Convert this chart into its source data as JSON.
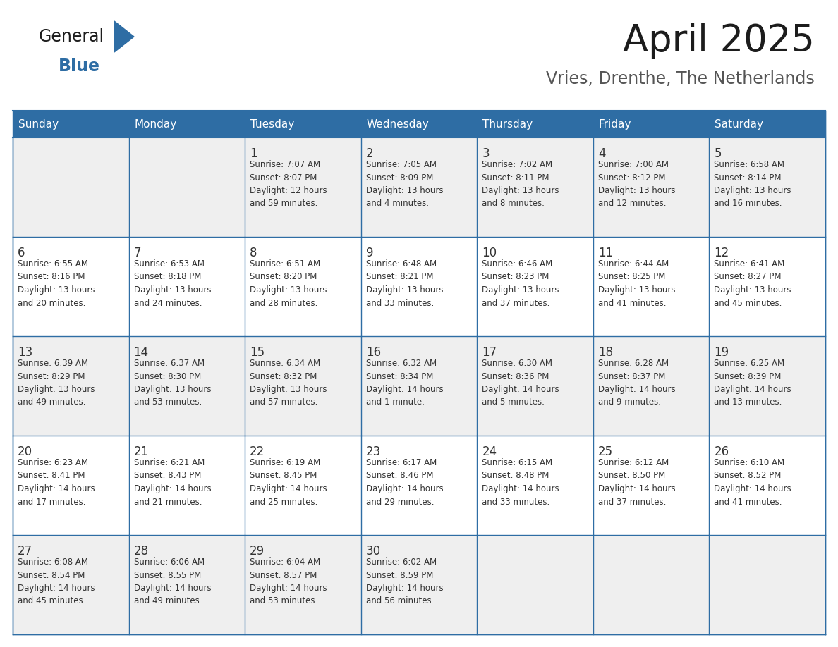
{
  "title": "April 2025",
  "subtitle": "Vries, Drenthe, The Netherlands",
  "header_bg": "#2E6DA4",
  "header_text": "#FFFFFF",
  "cell_bg_odd": "#EFEFEF",
  "cell_bg_even": "#FFFFFF",
  "cell_text": "#333333",
  "border_color": "#2E6DA4",
  "day_headers": [
    "Sunday",
    "Monday",
    "Tuesday",
    "Wednesday",
    "Thursday",
    "Friday",
    "Saturday"
  ],
  "weeks": [
    [
      {
        "day": "",
        "lines": []
      },
      {
        "day": "",
        "lines": []
      },
      {
        "day": "1",
        "lines": [
          "Sunrise: 7:07 AM",
          "Sunset: 8:07 PM",
          "Daylight: 12 hours",
          "and 59 minutes."
        ]
      },
      {
        "day": "2",
        "lines": [
          "Sunrise: 7:05 AM",
          "Sunset: 8:09 PM",
          "Daylight: 13 hours",
          "and 4 minutes."
        ]
      },
      {
        "day": "3",
        "lines": [
          "Sunrise: 7:02 AM",
          "Sunset: 8:11 PM",
          "Daylight: 13 hours",
          "and 8 minutes."
        ]
      },
      {
        "day": "4",
        "lines": [
          "Sunrise: 7:00 AM",
          "Sunset: 8:12 PM",
          "Daylight: 13 hours",
          "and 12 minutes."
        ]
      },
      {
        "day": "5",
        "lines": [
          "Sunrise: 6:58 AM",
          "Sunset: 8:14 PM",
          "Daylight: 13 hours",
          "and 16 minutes."
        ]
      }
    ],
    [
      {
        "day": "6",
        "lines": [
          "Sunrise: 6:55 AM",
          "Sunset: 8:16 PM",
          "Daylight: 13 hours",
          "and 20 minutes."
        ]
      },
      {
        "day": "7",
        "lines": [
          "Sunrise: 6:53 AM",
          "Sunset: 8:18 PM",
          "Daylight: 13 hours",
          "and 24 minutes."
        ]
      },
      {
        "day": "8",
        "lines": [
          "Sunrise: 6:51 AM",
          "Sunset: 8:20 PM",
          "Daylight: 13 hours",
          "and 28 minutes."
        ]
      },
      {
        "day": "9",
        "lines": [
          "Sunrise: 6:48 AM",
          "Sunset: 8:21 PM",
          "Daylight: 13 hours",
          "and 33 minutes."
        ]
      },
      {
        "day": "10",
        "lines": [
          "Sunrise: 6:46 AM",
          "Sunset: 8:23 PM",
          "Daylight: 13 hours",
          "and 37 minutes."
        ]
      },
      {
        "day": "11",
        "lines": [
          "Sunrise: 6:44 AM",
          "Sunset: 8:25 PM",
          "Daylight: 13 hours",
          "and 41 minutes."
        ]
      },
      {
        "day": "12",
        "lines": [
          "Sunrise: 6:41 AM",
          "Sunset: 8:27 PM",
          "Daylight: 13 hours",
          "and 45 minutes."
        ]
      }
    ],
    [
      {
        "day": "13",
        "lines": [
          "Sunrise: 6:39 AM",
          "Sunset: 8:29 PM",
          "Daylight: 13 hours",
          "and 49 minutes."
        ]
      },
      {
        "day": "14",
        "lines": [
          "Sunrise: 6:37 AM",
          "Sunset: 8:30 PM",
          "Daylight: 13 hours",
          "and 53 minutes."
        ]
      },
      {
        "day": "15",
        "lines": [
          "Sunrise: 6:34 AM",
          "Sunset: 8:32 PM",
          "Daylight: 13 hours",
          "and 57 minutes."
        ]
      },
      {
        "day": "16",
        "lines": [
          "Sunrise: 6:32 AM",
          "Sunset: 8:34 PM",
          "Daylight: 14 hours",
          "and 1 minute."
        ]
      },
      {
        "day": "17",
        "lines": [
          "Sunrise: 6:30 AM",
          "Sunset: 8:36 PM",
          "Daylight: 14 hours",
          "and 5 minutes."
        ]
      },
      {
        "day": "18",
        "lines": [
          "Sunrise: 6:28 AM",
          "Sunset: 8:37 PM",
          "Daylight: 14 hours",
          "and 9 minutes."
        ]
      },
      {
        "day": "19",
        "lines": [
          "Sunrise: 6:25 AM",
          "Sunset: 8:39 PM",
          "Daylight: 14 hours",
          "and 13 minutes."
        ]
      }
    ],
    [
      {
        "day": "20",
        "lines": [
          "Sunrise: 6:23 AM",
          "Sunset: 8:41 PM",
          "Daylight: 14 hours",
          "and 17 minutes."
        ]
      },
      {
        "day": "21",
        "lines": [
          "Sunrise: 6:21 AM",
          "Sunset: 8:43 PM",
          "Daylight: 14 hours",
          "and 21 minutes."
        ]
      },
      {
        "day": "22",
        "lines": [
          "Sunrise: 6:19 AM",
          "Sunset: 8:45 PM",
          "Daylight: 14 hours",
          "and 25 minutes."
        ]
      },
      {
        "day": "23",
        "lines": [
          "Sunrise: 6:17 AM",
          "Sunset: 8:46 PM",
          "Daylight: 14 hours",
          "and 29 minutes."
        ]
      },
      {
        "day": "24",
        "lines": [
          "Sunrise: 6:15 AM",
          "Sunset: 8:48 PM",
          "Daylight: 14 hours",
          "and 33 minutes."
        ]
      },
      {
        "day": "25",
        "lines": [
          "Sunrise: 6:12 AM",
          "Sunset: 8:50 PM",
          "Daylight: 14 hours",
          "and 37 minutes."
        ]
      },
      {
        "day": "26",
        "lines": [
          "Sunrise: 6:10 AM",
          "Sunset: 8:52 PM",
          "Daylight: 14 hours",
          "and 41 minutes."
        ]
      }
    ],
    [
      {
        "day": "27",
        "lines": [
          "Sunrise: 6:08 AM",
          "Sunset: 8:54 PM",
          "Daylight: 14 hours",
          "and 45 minutes."
        ]
      },
      {
        "day": "28",
        "lines": [
          "Sunrise: 6:06 AM",
          "Sunset: 8:55 PM",
          "Daylight: 14 hours",
          "and 49 minutes."
        ]
      },
      {
        "day": "29",
        "lines": [
          "Sunrise: 6:04 AM",
          "Sunset: 8:57 PM",
          "Daylight: 14 hours",
          "and 53 minutes."
        ]
      },
      {
        "day": "30",
        "lines": [
          "Sunrise: 6:02 AM",
          "Sunset: 8:59 PM",
          "Daylight: 14 hours",
          "and 56 minutes."
        ]
      },
      {
        "day": "",
        "lines": []
      },
      {
        "day": "",
        "lines": []
      },
      {
        "day": "",
        "lines": []
      }
    ]
  ]
}
